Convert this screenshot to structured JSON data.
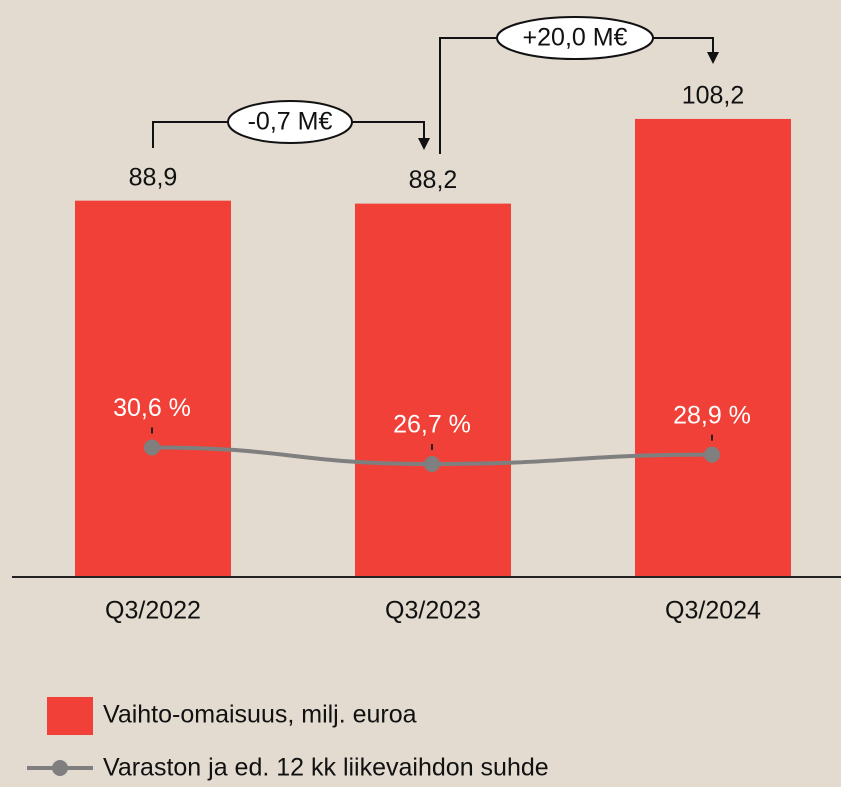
{
  "chart_data": {
    "type": "bar",
    "categories": [
      "Q3/2022",
      "Q3/2023",
      "Q3/2024"
    ],
    "series": [
      {
        "name": "Vaihto-omaisuus, milj. euroa",
        "type": "bar",
        "color": "#f04037",
        "values": [
          88.9,
          88.2,
          108.2
        ],
        "value_labels": [
          "88,9",
          "88,2",
          "108,2"
        ]
      },
      {
        "name": "Varaston ja ed. 12 kk liikevaihdon suhde",
        "type": "line",
        "axis": "y2",
        "color": "#7f7f7f",
        "values": [
          30.6,
          26.7,
          28.9
        ],
        "value_labels": [
          "30,6 %",
          "26,7 %",
          "28,9 %"
        ]
      }
    ],
    "ylim": [
      0,
      120
    ],
    "y2lim": [
      0,
      120
    ],
    "annotations": [
      "-0,7 M€",
      "+20,0 M€"
    ]
  }
}
